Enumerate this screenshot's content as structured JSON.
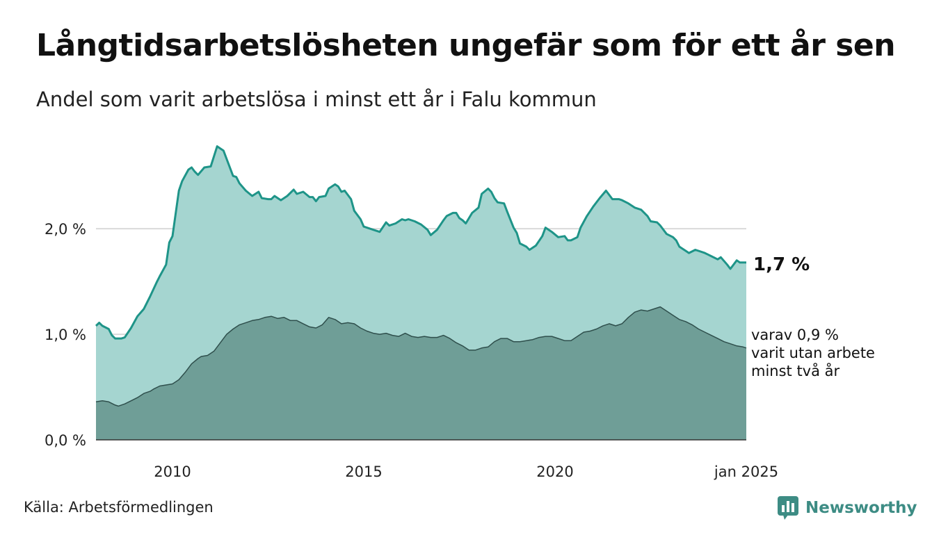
{
  "header": {
    "title": "Långtidsarbetslösheten ungefär som för ett år sen",
    "subtitle": "Andel som varit arbetslösa i minst ett år i Falu kommun"
  },
  "footer": {
    "source": "Källa: Arbetsförmedlingen",
    "brand": "Newsworthy"
  },
  "colors": {
    "series_1yr_fill": "#a5d5d0",
    "series_1yr_line": "#1e9488",
    "series_2yr_fill": "#6f9e97",
    "series_2yr_line": "#2f4f4c",
    "grid": "#d9d9d9",
    "brand": "#3d8c84"
  },
  "chart_data": {
    "type": "area",
    "ylim": [
      0,
      2.85
    ],
    "yticks": [
      {
        "value": 0,
        "label": "0,0 %"
      },
      {
        "value": 1,
        "label": "1,0 %"
      },
      {
        "value": 2,
        "label": "2,0 %"
      }
    ],
    "xlim": [
      "2008-01",
      "2025-01"
    ],
    "xticks": [
      {
        "date": "2010-01",
        "label": "2010"
      },
      {
        "date": "2015-01",
        "label": "2015"
      },
      {
        "date": "2020-01",
        "label": "2020"
      },
      {
        "date": "2025-01",
        "label": "jan 2025"
      }
    ],
    "grid": "horizontal",
    "series": [
      {
        "points": [
          [
            "2008-01",
            1.08
          ],
          [
            "2008-02",
            1.11
          ],
          [
            "2008-03",
            1.08
          ],
          [
            "2008-05",
            1.05
          ],
          [
            "2008-06",
            0.99
          ],
          [
            "2008-07",
            0.96
          ],
          [
            "2008-09",
            0.96
          ],
          [
            "2008-10",
            0.97
          ],
          [
            "2008-12",
            1.06
          ],
          [
            "2009-02",
            1.17
          ],
          [
            "2009-04",
            1.24
          ],
          [
            "2009-06",
            1.36
          ],
          [
            "2009-08",
            1.49
          ],
          [
            "2009-09",
            1.55
          ],
          [
            "2009-11",
            1.66
          ],
          [
            "2009-12",
            1.87
          ],
          [
            "2010-01",
            1.93
          ],
          [
            "2010-03",
            2.36
          ],
          [
            "2010-04",
            2.45
          ],
          [
            "2010-06",
            2.56
          ],
          [
            "2010-07",
            2.58
          ],
          [
            "2010-08",
            2.54
          ],
          [
            "2010-09",
            2.51
          ],
          [
            "2010-11",
            2.58
          ],
          [
            "2011-01",
            2.59
          ],
          [
            "2011-03",
            2.78
          ],
          [
            "2011-04",
            2.76
          ],
          [
            "2011-05",
            2.74
          ],
          [
            "2011-06",
            2.66
          ],
          [
            "2011-08",
            2.5
          ],
          [
            "2011-09",
            2.49
          ],
          [
            "2011-10",
            2.43
          ],
          [
            "2011-12",
            2.36
          ],
          [
            "2012-02",
            2.31
          ],
          [
            "2012-04",
            2.35
          ],
          [
            "2012-05",
            2.29
          ],
          [
            "2012-07",
            2.28
          ],
          [
            "2012-08",
            2.28
          ],
          [
            "2012-09",
            2.31
          ],
          [
            "2012-11",
            2.27
          ],
          [
            "2013-01",
            2.31
          ],
          [
            "2013-03",
            2.37
          ],
          [
            "2013-04",
            2.33
          ],
          [
            "2013-06",
            2.35
          ],
          [
            "2013-08",
            2.3
          ],
          [
            "2013-09",
            2.3
          ],
          [
            "2013-10",
            2.26
          ],
          [
            "2013-11",
            2.3
          ],
          [
            "2014-01",
            2.31
          ],
          [
            "2014-02",
            2.38
          ],
          [
            "2014-04",
            2.42
          ],
          [
            "2014-05",
            2.4
          ],
          [
            "2014-06",
            2.35
          ],
          [
            "2014-07",
            2.36
          ],
          [
            "2014-09",
            2.28
          ],
          [
            "2014-10",
            2.17
          ],
          [
            "2014-12",
            2.09
          ],
          [
            "2015-01",
            2.02
          ],
          [
            "2015-04",
            1.99
          ],
          [
            "2015-06",
            1.97
          ],
          [
            "2015-08",
            2.06
          ],
          [
            "2015-09",
            2.03
          ],
          [
            "2015-11",
            2.05
          ],
          [
            "2016-01",
            2.09
          ],
          [
            "2016-02",
            2.08
          ],
          [
            "2016-03",
            2.09
          ],
          [
            "2016-05",
            2.07
          ],
          [
            "2016-07",
            2.04
          ],
          [
            "2016-09",
            1.99
          ],
          [
            "2016-10",
            1.94
          ],
          [
            "2016-12",
            1.99
          ],
          [
            "2017-02",
            2.08
          ],
          [
            "2017-03",
            2.12
          ],
          [
            "2017-05",
            2.15
          ],
          [
            "2017-06",
            2.15
          ],
          [
            "2017-07",
            2.1
          ],
          [
            "2017-08",
            2.08
          ],
          [
            "2017-09",
            2.05
          ],
          [
            "2017-11",
            2.15
          ],
          [
            "2018-01",
            2.2
          ],
          [
            "2018-02",
            2.33
          ],
          [
            "2018-04",
            2.38
          ],
          [
            "2018-05",
            2.35
          ],
          [
            "2018-06",
            2.29
          ],
          [
            "2018-07",
            2.25
          ],
          [
            "2018-09",
            2.24
          ],
          [
            "2018-10",
            2.16
          ],
          [
            "2018-12",
            2.01
          ],
          [
            "2019-01",
            1.96
          ],
          [
            "2019-02",
            1.86
          ],
          [
            "2019-04",
            1.83
          ],
          [
            "2019-05",
            1.8
          ],
          [
            "2019-07",
            1.84
          ],
          [
            "2019-09",
            1.93
          ],
          [
            "2019-10",
            2.01
          ],
          [
            "2019-12",
            1.97
          ],
          [
            "2020-02",
            1.92
          ],
          [
            "2020-04",
            1.93
          ],
          [
            "2020-05",
            1.89
          ],
          [
            "2020-06",
            1.89
          ],
          [
            "2020-08",
            1.92
          ],
          [
            "2020-09",
            2.01
          ],
          [
            "2020-11",
            2.12
          ],
          [
            "2021-01",
            2.21
          ],
          [
            "2021-03",
            2.29
          ],
          [
            "2021-05",
            2.36
          ],
          [
            "2021-06",
            2.32
          ],
          [
            "2021-07",
            2.28
          ],
          [
            "2021-09",
            2.28
          ],
          [
            "2021-10",
            2.27
          ],
          [
            "2021-12",
            2.24
          ],
          [
            "2022-02",
            2.2
          ],
          [
            "2022-04",
            2.18
          ],
          [
            "2022-06",
            2.12
          ],
          [
            "2022-07",
            2.07
          ],
          [
            "2022-09",
            2.06
          ],
          [
            "2022-10",
            2.03
          ],
          [
            "2022-12",
            1.95
          ],
          [
            "2023-02",
            1.92
          ],
          [
            "2023-03",
            1.89
          ],
          [
            "2023-04",
            1.83
          ],
          [
            "2023-06",
            1.79
          ],
          [
            "2023-07",
            1.77
          ],
          [
            "2023-09",
            1.8
          ],
          [
            "2023-10",
            1.79
          ],
          [
            "2023-12",
            1.77
          ],
          [
            "2024-02",
            1.74
          ],
          [
            "2024-04",
            1.71
          ],
          [
            "2024-05",
            1.73
          ],
          [
            "2024-07",
            1.66
          ],
          [
            "2024-08",
            1.62
          ],
          [
            "2024-10",
            1.7
          ],
          [
            "2024-11",
            1.68
          ],
          [
            "2025-01",
            1.68
          ]
        ]
      },
      {
        "points": [
          [
            "2008-01",
            0.36
          ],
          [
            "2008-03",
            0.37
          ],
          [
            "2008-05",
            0.36
          ],
          [
            "2008-07",
            0.33
          ],
          [
            "2008-08",
            0.32
          ],
          [
            "2008-10",
            0.34
          ],
          [
            "2008-12",
            0.37
          ],
          [
            "2009-02",
            0.4
          ],
          [
            "2009-04",
            0.44
          ],
          [
            "2009-06",
            0.46
          ],
          [
            "2009-07",
            0.48
          ],
          [
            "2009-09",
            0.51
          ],
          [
            "2009-11",
            0.52
          ],
          [
            "2010-01",
            0.53
          ],
          [
            "2010-03",
            0.57
          ],
          [
            "2010-05",
            0.64
          ],
          [
            "2010-07",
            0.72
          ],
          [
            "2010-09",
            0.77
          ],
          [
            "2010-10",
            0.79
          ],
          [
            "2010-12",
            0.8
          ],
          [
            "2011-02",
            0.84
          ],
          [
            "2011-04",
            0.92
          ],
          [
            "2011-06",
            1.0
          ],
          [
            "2011-08",
            1.05
          ],
          [
            "2011-10",
            1.09
          ],
          [
            "2011-12",
            1.11
          ],
          [
            "2012-02",
            1.13
          ],
          [
            "2012-04",
            1.14
          ],
          [
            "2012-06",
            1.16
          ],
          [
            "2012-08",
            1.17
          ],
          [
            "2012-10",
            1.15
          ],
          [
            "2012-12",
            1.16
          ],
          [
            "2013-02",
            1.13
          ],
          [
            "2013-04",
            1.13
          ],
          [
            "2013-06",
            1.1
          ],
          [
            "2013-08",
            1.07
          ],
          [
            "2013-10",
            1.06
          ],
          [
            "2013-12",
            1.09
          ],
          [
            "2014-02",
            1.16
          ],
          [
            "2014-04",
            1.14
          ],
          [
            "2014-06",
            1.1
          ],
          [
            "2014-08",
            1.11
          ],
          [
            "2014-10",
            1.1
          ],
          [
            "2014-12",
            1.06
          ],
          [
            "2015-02",
            1.03
          ],
          [
            "2015-04",
            1.01
          ],
          [
            "2015-06",
            1.0
          ],
          [
            "2015-08",
            1.01
          ],
          [
            "2015-10",
            0.99
          ],
          [
            "2015-12",
            0.98
          ],
          [
            "2016-02",
            1.01
          ],
          [
            "2016-04",
            0.98
          ],
          [
            "2016-06",
            0.97
          ],
          [
            "2016-08",
            0.98
          ],
          [
            "2016-10",
            0.97
          ],
          [
            "2016-12",
            0.97
          ],
          [
            "2017-02",
            0.99
          ],
          [
            "2017-04",
            0.96
          ],
          [
            "2017-06",
            0.92
          ],
          [
            "2017-08",
            0.89
          ],
          [
            "2017-10",
            0.85
          ],
          [
            "2017-12",
            0.85
          ],
          [
            "2018-02",
            0.87
          ],
          [
            "2018-04",
            0.88
          ],
          [
            "2018-06",
            0.93
          ],
          [
            "2018-08",
            0.96
          ],
          [
            "2018-10",
            0.96
          ],
          [
            "2018-12",
            0.93
          ],
          [
            "2019-02",
            0.93
          ],
          [
            "2019-04",
            0.94
          ],
          [
            "2019-06",
            0.95
          ],
          [
            "2019-08",
            0.97
          ],
          [
            "2019-10",
            0.98
          ],
          [
            "2019-12",
            0.98
          ],
          [
            "2020-02",
            0.96
          ],
          [
            "2020-04",
            0.94
          ],
          [
            "2020-06",
            0.94
          ],
          [
            "2020-08",
            0.98
          ],
          [
            "2020-10",
            1.02
          ],
          [
            "2020-12",
            1.03
          ],
          [
            "2021-02",
            1.05
          ],
          [
            "2021-04",
            1.08
          ],
          [
            "2021-06",
            1.1
          ],
          [
            "2021-08",
            1.08
          ],
          [
            "2021-10",
            1.1
          ],
          [
            "2021-12",
            1.16
          ],
          [
            "2022-02",
            1.21
          ],
          [
            "2022-04",
            1.23
          ],
          [
            "2022-06",
            1.22
          ],
          [
            "2022-08",
            1.24
          ],
          [
            "2022-10",
            1.26
          ],
          [
            "2022-12",
            1.22
          ],
          [
            "2023-02",
            1.18
          ],
          [
            "2023-04",
            1.14
          ],
          [
            "2023-06",
            1.12
          ],
          [
            "2023-08",
            1.09
          ],
          [
            "2023-10",
            1.05
          ],
          [
            "2023-12",
            1.02
          ],
          [
            "2024-02",
            0.99
          ],
          [
            "2024-04",
            0.96
          ],
          [
            "2024-06",
            0.93
          ],
          [
            "2024-08",
            0.91
          ],
          [
            "2024-10",
            0.89
          ],
          [
            "2024-12",
            0.88
          ],
          [
            "2025-01",
            0.87
          ]
        ]
      }
    ],
    "annotations": [
      {
        "lines": [
          "1,7 %"
        ]
      },
      {
        "lines": [
          "varav 0,9 %",
          "varit utan arbete",
          "minst två år"
        ]
      }
    ]
  }
}
